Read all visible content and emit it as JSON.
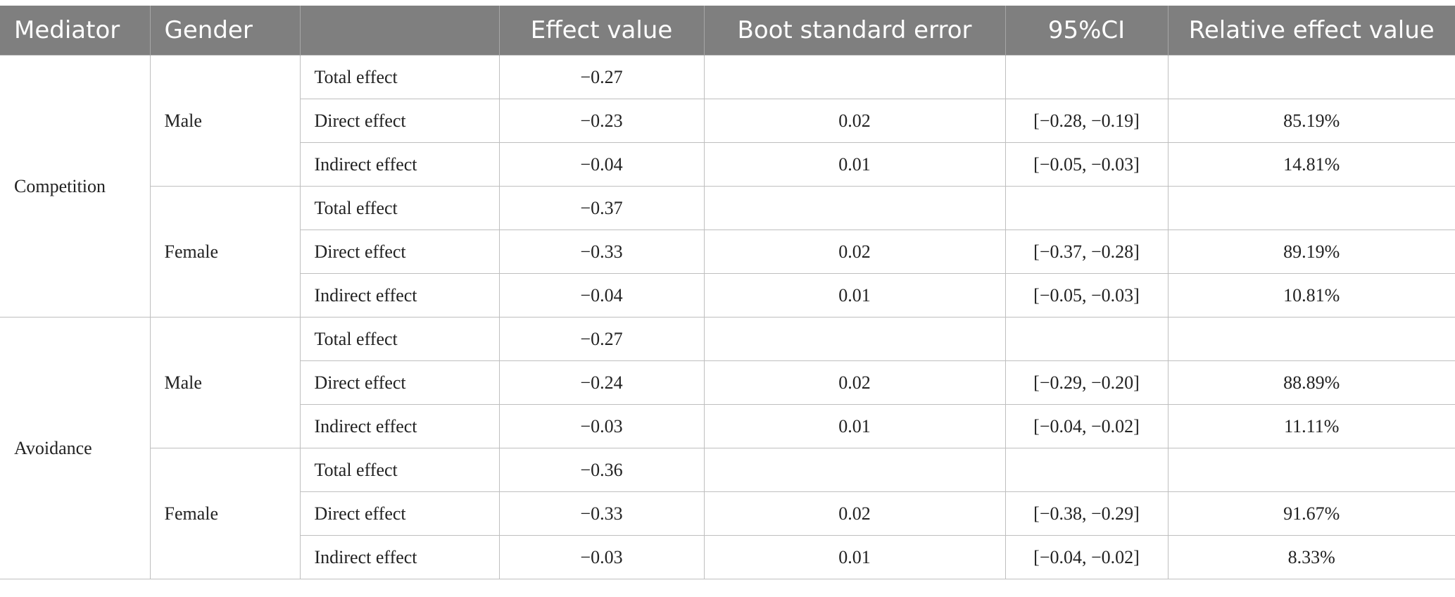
{
  "table": {
    "headers": [
      "Mediator",
      "Gender",
      "",
      "Effect value",
      "Boot standard error",
      "95%CI",
      "Relative effect value"
    ],
    "rows": [
      {
        "mediator": "Competition",
        "gender": "Male",
        "effect": "Total effect",
        "value": "−0.27",
        "se": "",
        "ci": "",
        "rel": ""
      },
      {
        "mediator": "Competition",
        "gender": "Male",
        "effect": "Direct effect",
        "value": "−0.23",
        "se": "0.02",
        "ci": "[−0.28, −0.19]",
        "rel": "85.19%"
      },
      {
        "mediator": "Competition",
        "gender": "Male",
        "effect": "Indirect effect",
        "value": "−0.04",
        "se": "0.01",
        "ci": "[−0.05, −0.03]",
        "rel": "14.81%"
      },
      {
        "mediator": "Competition",
        "gender": "Female",
        "effect": "Total effect",
        "value": "−0.37",
        "se": "",
        "ci": "",
        "rel": ""
      },
      {
        "mediator": "Competition",
        "gender": "Female",
        "effect": "Direct effect",
        "value": "−0.33",
        "se": "0.02",
        "ci": "[−0.37, −0.28]",
        "rel": "89.19%"
      },
      {
        "mediator": "Competition",
        "gender": "Female",
        "effect": "Indirect effect",
        "value": "−0.04",
        "se": "0.01",
        "ci": "[−0.05, −0.03]",
        "rel": "10.81%"
      },
      {
        "mediator": "Avoidance",
        "gender": "Male",
        "effect": "Total effect",
        "value": "−0.27",
        "se": "",
        "ci": "",
        "rel": ""
      },
      {
        "mediator": "Avoidance",
        "gender": "Male",
        "effect": "Direct effect",
        "value": "−0.24",
        "se": "0.02",
        "ci": "[−0.29, −0.20]",
        "rel": "88.89%"
      },
      {
        "mediator": "Avoidance",
        "gender": "Male",
        "effect": "Indirect effect",
        "value": "−0.03",
        "se": "0.01",
        "ci": "[−0.04, −0.02]",
        "rel": "11.11%"
      },
      {
        "mediator": "Avoidance",
        "gender": "Female",
        "effect": "Total effect",
        "value": "−0.36",
        "se": "",
        "ci": "",
        "rel": ""
      },
      {
        "mediator": "Avoidance",
        "gender": "Female",
        "effect": "Direct effect",
        "value": "−0.33",
        "se": "0.02",
        "ci": "[−0.38, −0.29]",
        "rel": "91.67%"
      },
      {
        "mediator": "Avoidance",
        "gender": "Female",
        "effect": "Indirect effect",
        "value": "−0.03",
        "se": "0.01",
        "ci": "[−0.04, −0.02]",
        "rel": "8.33%"
      }
    ]
  }
}
